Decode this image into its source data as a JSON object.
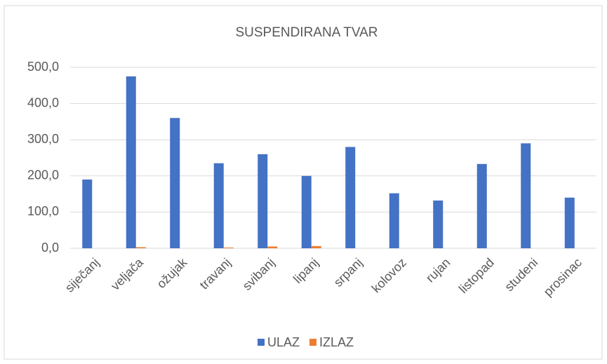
{
  "chart_data": {
    "type": "bar",
    "title": "SUSPENDIRANA TVAR",
    "categories": [
      "siječanj",
      "veljača",
      "ožujak",
      "travanj",
      "svibanj",
      "lipanj",
      "srpanj",
      "kolovoz",
      "rujan",
      "listopad",
      "studeni",
      "prosinac"
    ],
    "series": [
      {
        "name": "ULAZ",
        "color": "#4472c4",
        "values": [
          190,
          475,
          360,
          235,
          260,
          200,
          280,
          152,
          132,
          233,
          290,
          140
        ]
      },
      {
        "name": "IZLAZ",
        "color": "#ed7d31",
        "values": [
          0,
          3,
          0,
          2,
          5,
          6,
          0,
          0,
          0,
          0,
          0,
          0
        ]
      }
    ],
    "ylim": [
      0,
      500
    ],
    "yticks": [
      {
        "value": 0,
        "label": "0,0"
      },
      {
        "value": 100,
        "label": "100,0"
      },
      {
        "value": 200,
        "label": "200,0"
      },
      {
        "value": 300,
        "label": "300,0"
      },
      {
        "value": 400,
        "label": "400,0"
      },
      {
        "value": 500,
        "label": "500,0"
      }
    ],
    "grid": true,
    "legend": "bottom"
  }
}
